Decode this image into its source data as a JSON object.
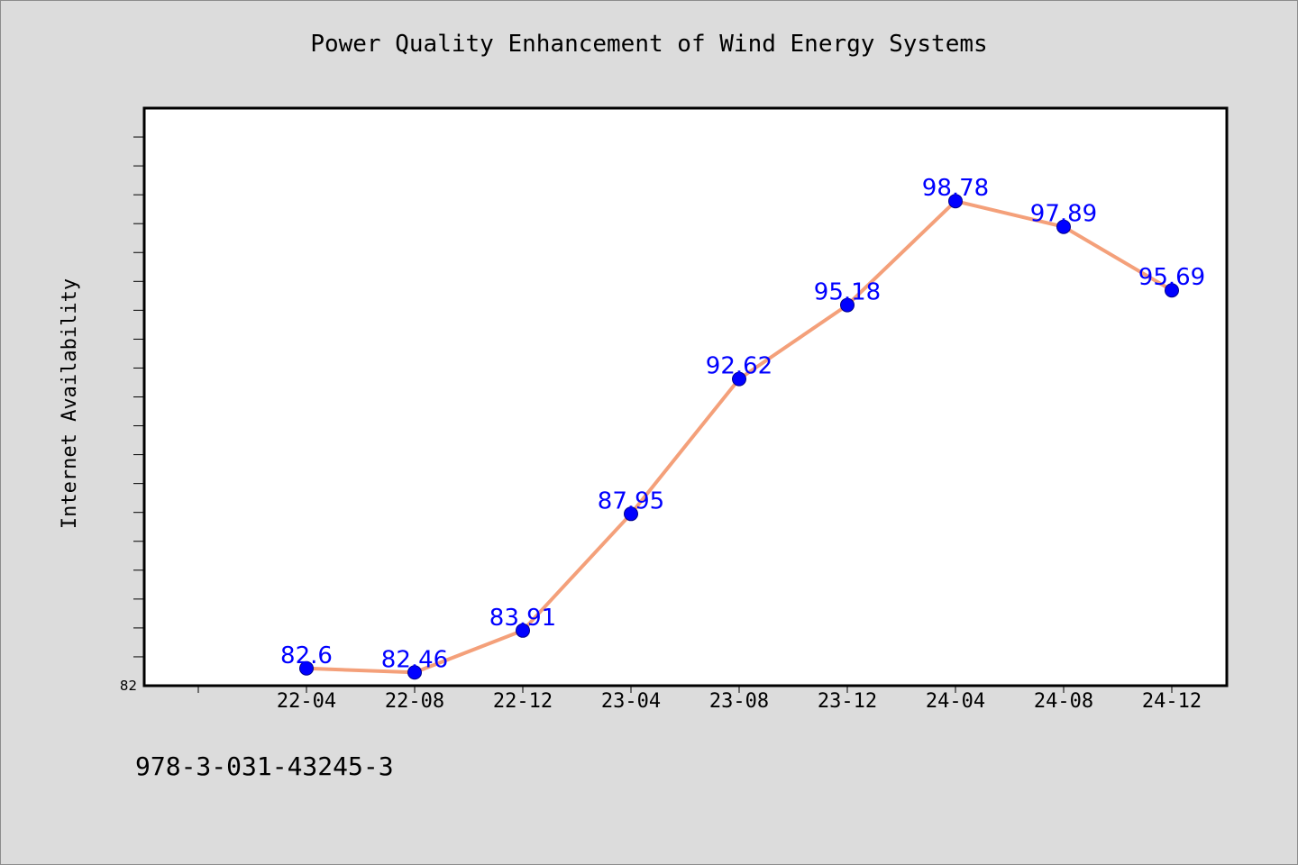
{
  "chart_data": {
    "type": "line",
    "title": "Power Quality Enhancement of Wind Energy Systems",
    "xlabel": "",
    "ylabel": "Internet Availability",
    "categories": [
      "22-04",
      "22-08",
      "22-12",
      "23-04",
      "23-08",
      "23-12",
      "24-04",
      "24-08",
      "24-12"
    ],
    "series": [
      {
        "values": [
          82.6,
          82.46,
          83.91,
          87.95,
          92.62,
          95.18,
          98.78,
          97.89,
          95.69
        ],
        "labels": [
          "82.6",
          "82.46",
          "83.91",
          "87.95",
          "92.62",
          "95.18",
          "98.78",
          "97.89",
          "95.69"
        ]
      }
    ],
    "ylim": [
      82,
      102
    ],
    "y_tick_labels": [
      "82"
    ],
    "grid": false,
    "colors": {
      "line": "#f4a07a",
      "marker": "#0000ff",
      "data_label": "#0000ff",
      "plot_background": "#ffffff",
      "page_background": "#dcdcdc"
    }
  },
  "footer": {
    "text": "978-3-031-43245-3"
  }
}
